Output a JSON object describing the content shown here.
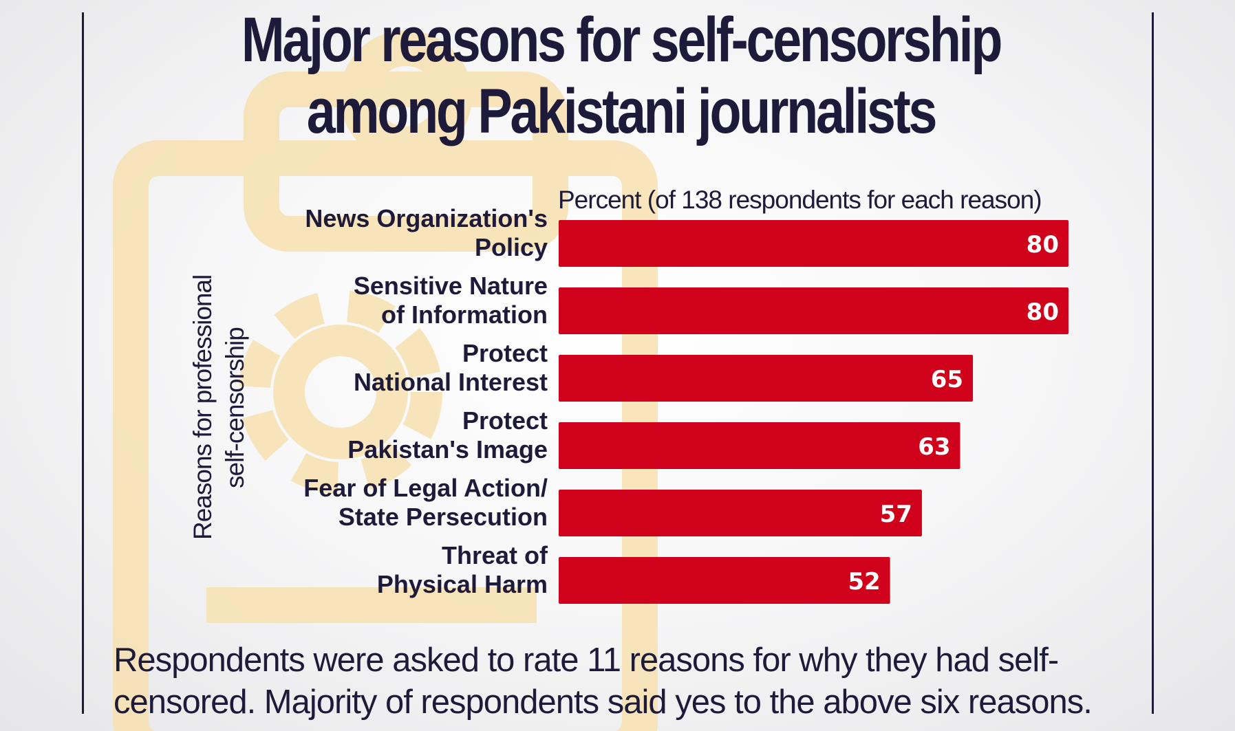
{
  "chart_data": {
    "type": "bar",
    "orientation": "horizontal",
    "title": "Major reasons for self-censorship among Pakistani journalists",
    "xlabel": "Percent (of 138 respondents for each reason)",
    "ylabel": "Reasons for professional self-censorship",
    "categories": [
      [
        "News Organization's",
        "Policy"
      ],
      [
        "Sensitive Nature",
        "of Information"
      ],
      [
        "Protect",
        "National Interest"
      ],
      [
        "Protect",
        "Pakistan's Image"
      ],
      [
        "Fear of Legal Action/",
        "State Persecution"
      ],
      [
        "Threat of",
        "Physical Harm"
      ]
    ],
    "values": [
      80,
      80,
      65,
      63,
      57,
      52
    ],
    "value_labels": [
      "80",
      "80",
      "65",
      "63",
      "57",
      "52"
    ],
    "xlim": [
      0,
      80
    ],
    "grid": false,
    "bar_color": "#d0021b"
  },
  "footnote": "Respondents were asked to rate 11 reasons for why they had self-censored. Majority of respondents said yes to the above six reasons.",
  "colors": {
    "title": "#1e1a3a",
    "bar": "#d0021b",
    "bar_label": "#ffffff",
    "background_illustration": "#f5d9a0"
  },
  "background_icons": [
    "clipboard-icon",
    "gear-icon"
  ]
}
